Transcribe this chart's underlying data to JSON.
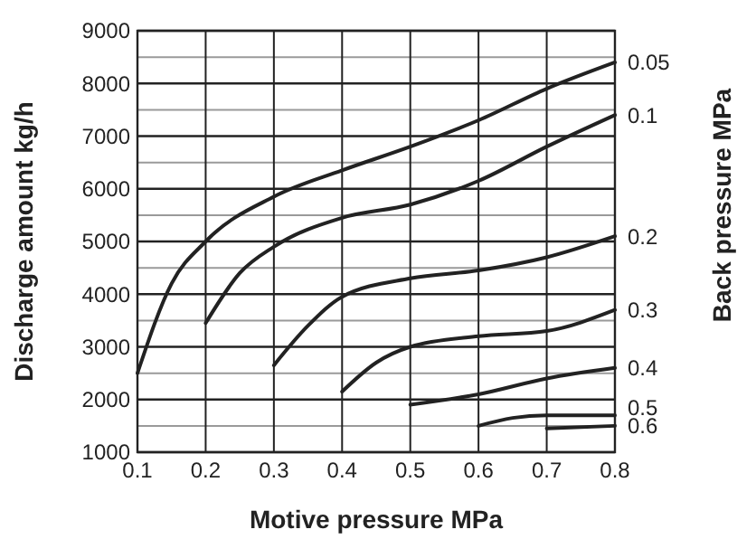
{
  "chart_data": {
    "type": "line",
    "xlabel": "Motive pressure MPa",
    "ylabel": "Discharge amount kg/h",
    "legend_title": "Back pressure MPa",
    "xlim": [
      0.1,
      0.8
    ],
    "xticks": [
      0.1,
      0.2,
      0.3,
      0.4,
      0.5,
      0.6,
      0.7,
      0.8
    ],
    "ylim": [
      1000,
      9000
    ],
    "yticks": [
      1000,
      {
        "value": 1500,
        "label": null
      },
      2000,
      {
        "value": 2500,
        "label": null
      },
      3000,
      {
        "value": 3500,
        "label": null
      },
      4000,
      {
        "value": 4500,
        "label": null
      },
      5000,
      {
        "value": 5500,
        "label": null
      },
      6000,
      {
        "value": 6500,
        "label": null
      },
      7000,
      {
        "value": 7500,
        "label": null
      },
      8000,
      {
        "value": 8500,
        "label": null
      },
      9000
    ],
    "grid": true,
    "marker": "none",
    "line_style": "solid",
    "series": [
      {
        "name": "0.05",
        "color": "#222222",
        "x": [
          0.1,
          0.15,
          0.2,
          0.3,
          0.4,
          0.5,
          0.6,
          0.7,
          0.8
        ],
        "values": [
          2500,
          4200,
          5000,
          5850,
          6350,
          6800,
          7300,
          7900,
          8400
        ]
      },
      {
        "name": "0.1",
        "color": "#222222",
        "x": [
          0.2,
          0.25,
          0.3,
          0.4,
          0.5,
          0.6,
          0.7,
          0.8
        ],
        "values": [
          3450,
          4400,
          4900,
          5450,
          5700,
          6150,
          6800,
          7400
        ]
      },
      {
        "name": "0.2",
        "color": "#222222",
        "x": [
          0.3,
          0.35,
          0.4,
          0.5,
          0.6,
          0.7,
          0.8
        ],
        "values": [
          2650,
          3400,
          3950,
          4300,
          4450,
          4700,
          5100
        ]
      },
      {
        "name": "0.3",
        "color": "#222222",
        "x": [
          0.4,
          0.45,
          0.5,
          0.6,
          0.7,
          0.8
        ],
        "values": [
          2150,
          2700,
          3000,
          3200,
          3300,
          3700
        ]
      },
      {
        "name": "0.4",
        "color": "#222222",
        "x": [
          0.5,
          0.6,
          0.7,
          0.8
        ],
        "values": [
          1900,
          2100,
          2400,
          2600
        ]
      },
      {
        "name": "0.5",
        "color": "#222222",
        "x": [
          0.6,
          0.65,
          0.7,
          0.8
        ],
        "values": [
          1500,
          1650,
          1700,
          1700
        ]
      },
      {
        "name": "0.6",
        "color": "#222222",
        "x": [
          0.7,
          0.8
        ],
        "values": [
          1450,
          1500
        ]
      }
    ]
  }
}
